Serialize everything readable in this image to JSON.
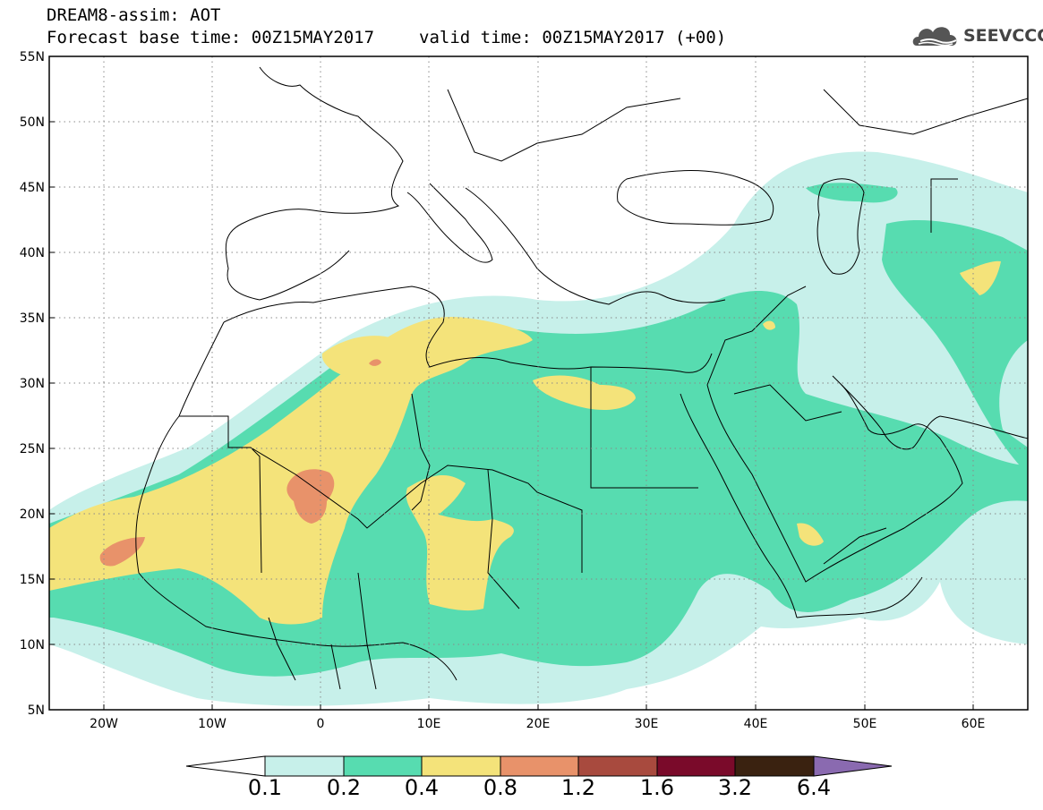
{
  "header": {
    "title_line1": "DREAM8-assim: AOT",
    "base_time": "Forecast base time: 00Z15MAY2017",
    "valid_time": "valid time: 00Z15MAY2017 (+00)"
  },
  "logo": {
    "text": "SEEVCCC",
    "icon": "cloud-icon"
  },
  "map": {
    "variable": "AOT",
    "projection": "lat-lon",
    "extent": {
      "lon": [
        -25,
        65
      ],
      "lat": [
        5,
        55
      ]
    },
    "lat_labels": [
      "55N",
      "50N",
      "45N",
      "40N",
      "35N",
      "30N",
      "25N",
      "20N",
      "15N",
      "10N",
      "5N"
    ],
    "lon_labels": [
      "20W",
      "10W",
      "0",
      "10E",
      "20E",
      "30E",
      "40E",
      "50E",
      "60E"
    ],
    "grid": "dotted"
  },
  "colorbar": {
    "levels": [
      "0.1",
      "0.2",
      "0.4",
      "0.8",
      "1.2",
      "1.6",
      "3.2",
      "6.4"
    ],
    "colors": [
      "#ffffff",
      "#c7f0ea",
      "#57dcb0",
      "#f4e37a",
      "#e8926a",
      "#a84a3e",
      "#7a0a2a",
      "#3a2210",
      "#8a6ab0"
    ]
  }
}
